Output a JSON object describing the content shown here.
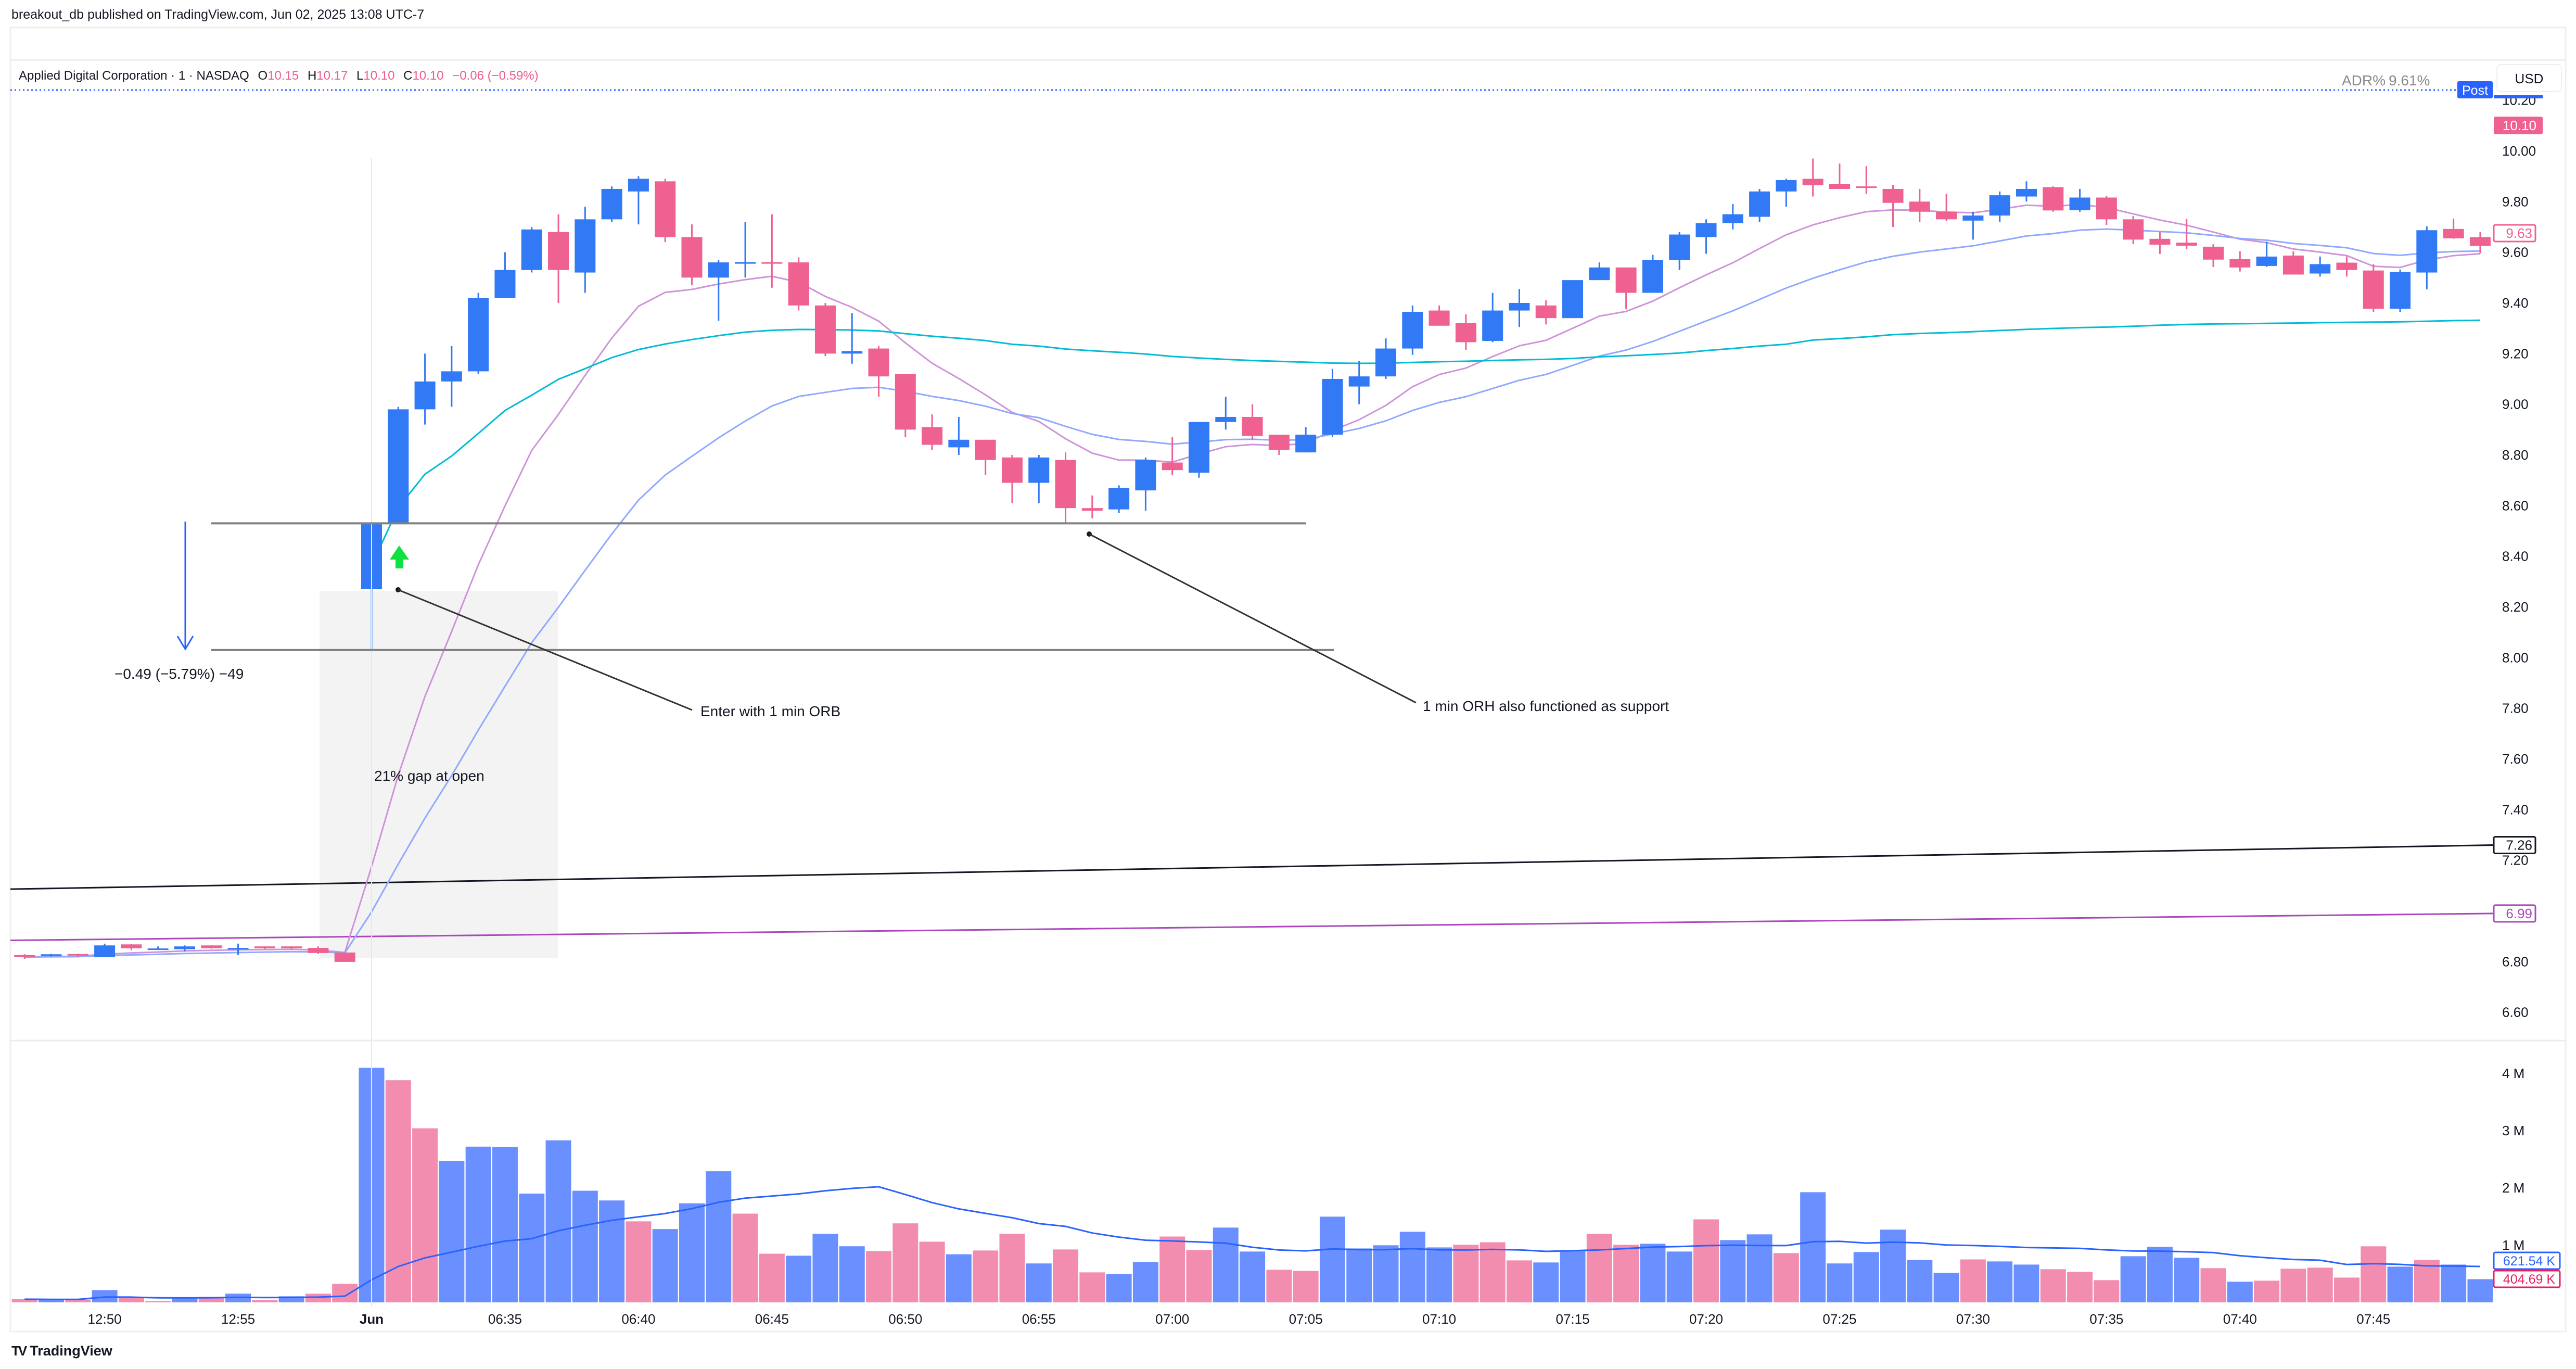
{
  "header": {
    "published": "breakout_db published on TradingView.com, Jun 02, 2025 13:08 UTC-7"
  },
  "legend": {
    "symbol": "Applied Digital Corporation · 1 · NASDAQ",
    "o_label": "O",
    "o": "10.15",
    "h_label": "H",
    "h": "10.17",
    "l_label": "L",
    "l": "10.10",
    "c_label": "C",
    "c": "10.10",
    "change": "−0.06 (−0.59%)"
  },
  "indicator": {
    "adr_label": "ADR%",
    "adr_value": "9.61%"
  },
  "price_axis": {
    "currency": "USD",
    "ticks": [
      "10.20",
      "10.00",
      "9.80",
      "9.60",
      "9.40",
      "9.20",
      "9.00",
      "8.80",
      "8.60",
      "8.40",
      "8.20",
      "8.00",
      "7.80",
      "7.60",
      "7.40",
      "7.20",
      "6.80",
      "6.60"
    ],
    "post_badge": "Post",
    "post_price": "10.10",
    "last_price": "9.63",
    "tags": [
      {
        "value": "7.26",
        "color": "#131722"
      },
      {
        "value": "6.99",
        "color": "#ab47bc"
      }
    ]
  },
  "volume_axis": {
    "ticks": [
      {
        "label": "4 M",
        "value": 4
      },
      {
        "label": "3 M",
        "value": 3
      },
      {
        "label": "2 M",
        "value": 2
      },
      {
        "label": "1 M",
        "value": 1
      }
    ],
    "ma_value": "621.54 K",
    "last_volume": "404.69 K"
  },
  "time_axis": [
    {
      "label": "12:50",
      "time": "12:50"
    },
    {
      "label": "12:55",
      "time": "12:55"
    },
    {
      "label": "Jun",
      "time": "06:30",
      "bold": true
    },
    {
      "label": "06:35",
      "time": "06:35"
    },
    {
      "label": "06:40",
      "time": "06:40"
    },
    {
      "label": "06:45",
      "time": "06:45"
    },
    {
      "label": "06:50",
      "time": "06:50"
    },
    {
      "label": "06:55",
      "time": "06:55"
    },
    {
      "label": "07:00",
      "time": "07:00"
    },
    {
      "label": "07:05",
      "time": "07:05"
    },
    {
      "label": "07:10",
      "time": "07:10"
    },
    {
      "label": "07:15",
      "time": "07:15"
    },
    {
      "label": "07:20",
      "time": "07:20"
    },
    {
      "label": "07:25",
      "time": "07:25"
    },
    {
      "label": "07:30",
      "time": "07:30"
    },
    {
      "label": "07:35",
      "time": "07:35"
    },
    {
      "label": "07:40",
      "time": "07:40"
    },
    {
      "label": "07:45",
      "time": "07:45"
    }
  ],
  "annotations": {
    "measure": "−0.49 (−5.79%) −49",
    "entry_note": "Enter with 1 min ORB",
    "support_note": "1 min ORH also functioned as support",
    "gap_note": "21% gap at open",
    "levels": [
      8.53,
      8.03
    ]
  },
  "footer": {
    "logo": "TV",
    "brand": "TradingView"
  },
  "chart_data": {
    "type": "candlestick",
    "interval": "1",
    "up_color": "#3179f5",
    "down_color": "#ef6190",
    "volume_up_color": "#6a90ff",
    "volume_down_color": "#f28db0",
    "ylim": [
      6.6,
      10.2
    ],
    "volume_ylim": [
      0,
      4
    ],
    "volume_unit": "M",
    "grid": false,
    "times": [
      "12:47",
      "12:48",
      "12:49",
      "12:50",
      "12:51",
      "12:52",
      "12:53",
      "12:54",
      "12:55",
      "12:56",
      "12:57",
      "12:58",
      "12:59",
      "06:30",
      "06:31",
      "06:32",
      "06:33",
      "06:34",
      "06:35",
      "06:36",
      "06:37",
      "06:38",
      "06:39",
      "06:40",
      "06:41",
      "06:42",
      "06:43",
      "06:44",
      "06:45",
      "06:46",
      "06:47",
      "06:48",
      "06:49",
      "06:50",
      "06:51",
      "06:52",
      "06:53",
      "06:54",
      "06:55",
      "06:56",
      "06:57",
      "06:58",
      "06:59",
      "07:00",
      "07:01",
      "07:02",
      "07:03",
      "07:04",
      "07:05",
      "07:06",
      "07:07",
      "07:08",
      "07:09",
      "07:10",
      "07:11",
      "07:12",
      "07:13",
      "07:14",
      "07:15",
      "07:16",
      "07:17",
      "07:18",
      "07:19",
      "07:20",
      "07:21",
      "07:22",
      "07:23",
      "07:24",
      "07:25",
      "07:26",
      "07:27",
      "07:28",
      "07:29",
      "07:30",
      "07:31",
      "07:32",
      "07:33",
      "07:34",
      "07:35",
      "07:36",
      "07:37",
      "07:38",
      "07:39",
      "07:40",
      "07:41",
      "07:42",
      "07:43",
      "07:44",
      "07:45",
      "07:46",
      "07:47",
      "07:48",
      "07:49"
    ],
    "ohlc": [
      [
        6.826,
        6.829,
        6.811,
        6.818
      ],
      [
        6.825,
        6.831,
        6.82,
        6.829
      ],
      [
        6.83,
        6.831,
        6.819,
        6.824
      ],
      [
        6.818,
        6.871,
        6.818,
        6.864
      ],
      [
        6.868,
        6.87,
        6.845,
        6.853
      ],
      [
        6.849,
        6.86,
        6.849,
        6.852
      ],
      [
        6.849,
        6.864,
        6.84,
        6.86
      ],
      [
        6.864,
        6.864,
        6.851,
        6.853
      ],
      [
        6.849,
        6.871,
        6.826,
        6.854
      ],
      [
        6.86,
        6.86,
        6.85,
        6.853
      ],
      [
        6.86,
        6.86,
        6.85,
        6.853
      ],
      [
        6.854,
        6.86,
        6.83,
        6.834
      ],
      [
        6.836,
        6.836,
        6.799,
        6.799
      ],
      [
        8.27,
        8.53,
        8.03,
        8.53
      ],
      [
        8.53,
        8.99,
        8.53,
        8.98
      ],
      [
        8.98,
        9.2,
        8.92,
        9.09
      ],
      [
        9.09,
        9.23,
        8.99,
        9.13
      ],
      [
        9.13,
        9.44,
        9.12,
        9.42
      ],
      [
        9.42,
        9.6,
        9.42,
        9.53
      ],
      [
        9.53,
        9.7,
        9.52,
        9.69
      ],
      [
        9.68,
        9.75,
        9.4,
        9.53
      ],
      [
        9.52,
        9.78,
        9.44,
        9.73
      ],
      [
        9.73,
        9.86,
        9.72,
        9.85
      ],
      [
        9.84,
        9.9,
        9.71,
        9.89
      ],
      [
        9.88,
        9.89,
        9.64,
        9.66
      ],
      [
        9.66,
        9.71,
        9.47,
        9.5
      ],
      [
        9.5,
        9.57,
        9.33,
        9.56
      ],
      [
        9.56,
        9.72,
        9.5,
        9.561
      ],
      [
        9.561,
        9.75,
        9.46,
        9.558
      ],
      [
        9.56,
        9.58,
        9.37,
        9.39
      ],
      [
        9.39,
        9.4,
        9.19,
        9.2
      ],
      [
        9.2,
        9.36,
        9.16,
        9.21
      ],
      [
        9.22,
        9.23,
        9.03,
        9.11
      ],
      [
        9.12,
        9.12,
        8.87,
        8.9
      ],
      [
        8.91,
        8.96,
        8.82,
        8.84
      ],
      [
        8.83,
        8.95,
        8.8,
        8.86
      ],
      [
        8.86,
        8.86,
        8.72,
        8.78
      ],
      [
        8.79,
        8.8,
        8.61,
        8.69
      ],
      [
        8.69,
        8.8,
        8.61,
        8.79
      ],
      [
        8.78,
        8.81,
        8.53,
        8.59
      ],
      [
        8.59,
        8.64,
        8.55,
        8.58
      ],
      [
        8.585,
        8.68,
        8.57,
        8.67
      ],
      [
        8.66,
        8.79,
        8.58,
        8.78
      ],
      [
        8.77,
        8.87,
        8.72,
        8.74
      ],
      [
        8.73,
        8.93,
        8.71,
        8.93
      ],
      [
        8.93,
        9.03,
        8.9,
        8.95
      ],
      [
        8.95,
        9.0,
        8.86,
        8.875
      ],
      [
        8.88,
        8.88,
        8.8,
        8.82
      ],
      [
        8.81,
        8.91,
        8.81,
        8.88
      ],
      [
        8.88,
        9.14,
        8.87,
        9.1
      ],
      [
        9.07,
        9.17,
        9.0,
        9.11
      ],
      [
        9.11,
        9.26,
        9.1,
        9.22
      ],
      [
        9.22,
        9.39,
        9.195,
        9.365
      ],
      [
        9.37,
        9.39,
        9.31,
        9.31
      ],
      [
        9.32,
        9.355,
        9.215,
        9.245
      ],
      [
        9.25,
        9.44,
        9.245,
        9.37
      ],
      [
        9.37,
        9.455,
        9.305,
        9.4
      ],
      [
        9.39,
        9.41,
        9.315,
        9.34
      ],
      [
        9.34,
        9.49,
        9.34,
        9.49
      ],
      [
        9.49,
        9.56,
        9.49,
        9.54
      ],
      [
        9.54,
        9.54,
        9.375,
        9.44
      ],
      [
        9.44,
        9.59,
        9.44,
        9.57
      ],
      [
        9.57,
        9.68,
        9.53,
        9.67
      ],
      [
        9.66,
        9.73,
        9.594,
        9.715
      ],
      [
        9.715,
        9.79,
        9.69,
        9.75
      ],
      [
        9.74,
        9.85,
        9.72,
        9.84
      ],
      [
        9.84,
        9.89,
        9.78,
        9.885
      ],
      [
        9.89,
        9.97,
        9.82,
        9.865
      ],
      [
        9.87,
        9.95,
        9.85,
        9.85
      ],
      [
        9.86,
        9.94,
        9.83,
        9.855
      ],
      [
        9.85,
        9.865,
        9.7,
        9.795
      ],
      [
        9.8,
        9.85,
        9.72,
        9.76
      ],
      [
        9.76,
        9.83,
        9.723,
        9.73
      ],
      [
        9.725,
        9.76,
        9.65,
        9.745
      ],
      [
        9.745,
        9.84,
        9.72,
        9.825
      ],
      [
        9.82,
        9.88,
        9.8,
        9.85
      ],
      [
        9.857,
        9.86,
        9.76,
        9.765
      ],
      [
        9.766,
        9.85,
        9.76,
        9.816
      ],
      [
        9.816,
        9.822,
        9.708,
        9.73
      ],
      [
        9.73,
        9.743,
        9.632,
        9.65
      ],
      [
        9.653,
        9.681,
        9.593,
        9.63
      ],
      [
        9.638,
        9.732,
        9.612,
        9.626
      ],
      [
        9.622,
        9.632,
        9.542,
        9.571
      ],
      [
        9.573,
        9.604,
        9.524,
        9.54
      ],
      [
        9.546,
        9.642,
        9.542,
        9.583
      ],
      [
        9.587,
        9.604,
        9.512,
        9.512
      ],
      [
        9.516,
        9.583,
        9.504,
        9.553
      ],
      [
        9.559,
        9.583,
        9.504,
        9.53
      ],
      [
        9.528,
        9.553,
        9.365,
        9.377
      ],
      [
        9.377,
        9.532,
        9.365,
        9.522
      ],
      [
        9.52,
        9.702,
        9.454,
        9.687
      ],
      [
        9.692,
        9.733,
        9.653,
        9.655
      ],
      [
        9.66,
        9.68,
        9.595,
        9.625
      ]
    ],
    "volume": [
      0.055,
      0.05,
      0.05,
      0.215,
      0.088,
      0.024,
      0.067,
      0.097,
      0.152,
      0.042,
      0.106,
      0.152,
      0.324,
      4.097,
      3.88,
      3.04,
      2.47,
      2.72,
      2.715,
      1.9,
      2.83,
      1.95,
      1.78,
      1.415,
      1.28,
      1.73,
      2.29,
      1.55,
      0.85,
      0.815,
      1.197,
      0.98,
      0.897,
      1.38,
      1.06,
      0.84,
      0.906,
      1.197,
      0.68,
      0.924,
      0.524,
      0.497,
      0.706,
      1.15,
      0.915,
      1.306,
      0.888,
      0.57,
      0.55,
      1.497,
      0.942,
      0.997,
      1.233,
      0.96,
      1.006,
      1.05,
      0.733,
      0.697,
      0.906,
      1.197,
      1.006,
      1.024,
      0.888,
      1.45,
      1.088,
      1.188,
      0.86,
      1.924,
      0.68,
      0.879,
      1.27,
      0.742,
      0.515,
      0.75,
      0.715,
      0.66,
      0.579,
      0.533,
      0.388,
      0.806,
      0.97,
      0.779,
      0.597,
      0.361,
      0.379,
      0.588,
      0.606,
      0.433,
      0.979,
      0.624,
      0.742,
      0.66,
      0.405
    ],
    "volume_direction": "dudud dudud uddudduuuuuuuduuudduuuddduddudduudduudduuuuuddduudduuduuduuuuuuduuddduuudu ddddduduuuduudd",
    "volume_ma_length": 20,
    "moving_averages": [
      {
        "type": "EMA",
        "length": 9,
        "color": "#ce93d8"
      },
      {
        "type": "EMA",
        "length": 20,
        "color": "#90a8ff"
      }
    ],
    "vwap_color": "#00bcd4",
    "daily_lines": [
      {
        "start": 7.086,
        "end": 7.26,
        "color": "#131722"
      },
      {
        "start": 6.884,
        "end": 6.99,
        "color": "#ab47bc"
      }
    ]
  }
}
